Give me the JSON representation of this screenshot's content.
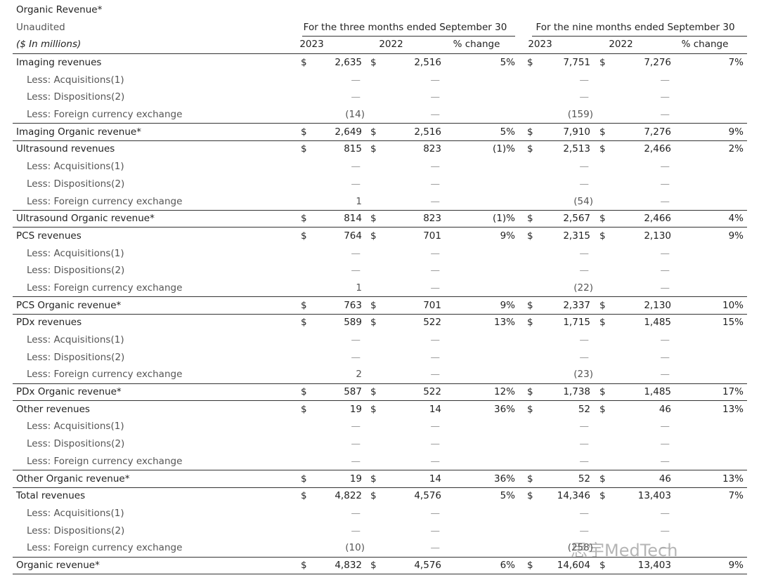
{
  "header": {
    "title": "Organic Revenue*",
    "subtitle": "Unaudited",
    "units": "($ In millions)",
    "periods": [
      "For the three months ended September 30",
      "For the nine months ended September 30"
    ],
    "columns": [
      "2023",
      "2022",
      "% change",
      "2023",
      "2022",
      "% change"
    ]
  },
  "table": {
    "rows": [
      {
        "label": "Imaging revenues",
        "currency": "$",
        "values": [
          "2,635",
          "2,516",
          "5%",
          "7,751",
          "7,276",
          "7%"
        ]
      },
      {
        "label": "Less: Acquisitions(1)",
        "indent": true,
        "values": [
          "—",
          "—",
          null,
          "—",
          "—",
          null
        ]
      },
      {
        "label": "Less: Dispositions(2)",
        "indent": true,
        "values": [
          "—",
          "—",
          null,
          "—",
          "—",
          null
        ]
      },
      {
        "label": "Less: Foreign currency exchange",
        "indent": true,
        "values": [
          "(14)",
          "—",
          null,
          "(159)",
          "—",
          null
        ]
      },
      {
        "label": "Imaging Organic revenue*",
        "rule": true,
        "currency": "$",
        "values": [
          "2,649",
          "2,516",
          "5%",
          "7,910",
          "7,276",
          "9%"
        ]
      },
      {
        "label": "Ultrasound revenues",
        "currency": "$",
        "values": [
          "815",
          "823",
          "(1)%",
          "2,513",
          "2,466",
          "2%"
        ]
      },
      {
        "label": "Less: Acquisitions(1)",
        "indent": true,
        "values": [
          "—",
          "—",
          null,
          "—",
          "—",
          null
        ]
      },
      {
        "label": "Less: Dispositions(2)",
        "indent": true,
        "values": [
          "—",
          "—",
          null,
          "—",
          "—",
          null
        ]
      },
      {
        "label": "Less: Foreign currency exchange",
        "indent": true,
        "values": [
          "1",
          "—",
          null,
          "(54)",
          "—",
          null
        ]
      },
      {
        "label": "Ultrasound Organic revenue*",
        "rule": true,
        "currency": "$",
        "values": [
          "814",
          "823",
          "(1)%",
          "2,567",
          "2,466",
          "4%"
        ]
      },
      {
        "label": "PCS revenues",
        "currency": "$",
        "values": [
          "764",
          "701",
          "9%",
          "2,315",
          "2,130",
          "9%"
        ]
      },
      {
        "label": "Less: Acquisitions(1)",
        "indent": true,
        "values": [
          "—",
          "—",
          null,
          "—",
          "—",
          null
        ]
      },
      {
        "label": "Less: Dispositions(2)",
        "indent": true,
        "values": [
          "—",
          "—",
          null,
          "—",
          "—",
          null
        ]
      },
      {
        "label": "Less: Foreign currency exchange",
        "indent": true,
        "values": [
          "1",
          "—",
          null,
          "(22)",
          "—",
          null
        ]
      },
      {
        "label": "PCS Organic revenue*",
        "rule": true,
        "currency": "$",
        "values": [
          "763",
          "701",
          "9%",
          "2,337",
          "2,130",
          "10%"
        ]
      },
      {
        "label": "PDx revenues",
        "currency": "$",
        "values": [
          "589",
          "522",
          "13%",
          "1,715",
          "1,485",
          "15%"
        ]
      },
      {
        "label": "Less: Acquisitions(1)",
        "indent": true,
        "values": [
          "—",
          "—",
          null,
          "—",
          "—",
          null
        ]
      },
      {
        "label": "Less: Dispositions(2)",
        "indent": true,
        "values": [
          "—",
          "—",
          null,
          "—",
          "—",
          null
        ]
      },
      {
        "label": "Less: Foreign currency exchange",
        "indent": true,
        "values": [
          "2",
          "—",
          null,
          "(23)",
          "—",
          null
        ]
      },
      {
        "label": "PDx Organic revenue*",
        "rule": true,
        "currency": "$",
        "values": [
          "587",
          "522",
          "12%",
          "1,738",
          "1,485",
          "17%"
        ]
      },
      {
        "label": "Other revenues",
        "currency": "$",
        "values": [
          "19",
          "14",
          "36%",
          "52",
          "46",
          "13%"
        ]
      },
      {
        "label": "Less: Acquisitions(1)",
        "indent": true,
        "values": [
          "—",
          "—",
          null,
          "—",
          "—",
          null
        ]
      },
      {
        "label": "Less: Dispositions(2)",
        "indent": true,
        "values": [
          "—",
          "—",
          null,
          "—",
          "—",
          null
        ]
      },
      {
        "label": "Less: Foreign currency exchange",
        "indent": true,
        "values": [
          "—",
          "—",
          null,
          "—",
          "—",
          null
        ]
      },
      {
        "label": "Other Organic revenue*",
        "rule": true,
        "currency": "$",
        "values": [
          "19",
          "14",
          "36%",
          "52",
          "46",
          "13%"
        ]
      },
      {
        "label": "Total revenues",
        "currency": "$",
        "values": [
          "4,822",
          "4,576",
          "5%",
          "14,346",
          "13,403",
          "7%"
        ]
      },
      {
        "label": "Less: Acquisitions(1)",
        "indent": true,
        "values": [
          "—",
          "—",
          null,
          "—",
          "—",
          null
        ]
      },
      {
        "label": "Less: Dispositions(2)",
        "indent": true,
        "values": [
          "—",
          "—",
          null,
          "—",
          "—",
          null
        ]
      },
      {
        "label": "Less: Foreign currency exchange",
        "indent": true,
        "values": [
          "(10)",
          "—",
          null,
          "(258)",
          "—",
          null
        ]
      },
      {
        "label": "Organic revenue*",
        "rule": true,
        "currency": "$",
        "values": [
          "4,832",
          "4,576",
          "6%",
          "14,604",
          "13,403",
          "9%"
        ]
      }
    ]
  },
  "watermark": "思宇MedTech"
}
